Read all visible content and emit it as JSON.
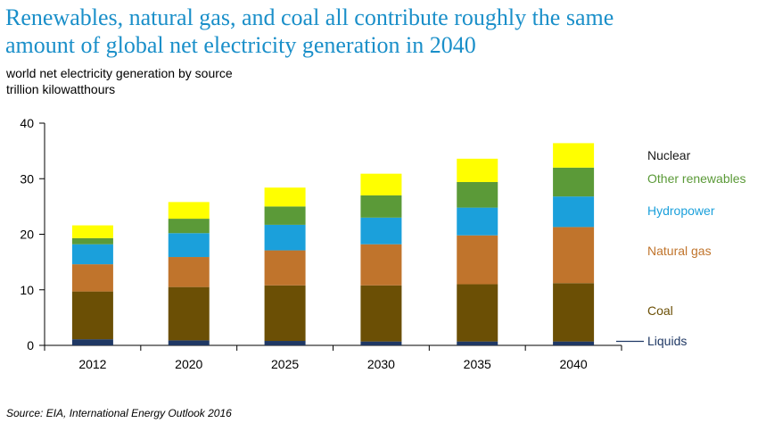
{
  "title_line1": "Renewables, natural gas, and coal all contribute roughly the same",
  "title_line2": "amount of global net electricity generation in 2040",
  "subtitle_line1": "world net electricity generation by source",
  "subtitle_line2": "trillion kilowatthours",
  "source": "Source:  EIA, International Energy Outlook 2016",
  "chart_data": {
    "type": "bar",
    "stacked": true,
    "categories": [
      "2012",
      "2020",
      "2025",
      "2030",
      "2035",
      "2040"
    ],
    "ylim": [
      0,
      40
    ],
    "yticks": [
      0,
      10,
      20,
      30,
      40
    ],
    "grid": false,
    "legend_placement": "right",
    "series": [
      {
        "name": "Liquids",
        "color": "#1f3864",
        "values": [
          1.1,
          0.9,
          0.8,
          0.7,
          0.7,
          0.7
        ]
      },
      {
        "name": "Coal",
        "color": "#6b4f05",
        "values": [
          8.6,
          9.6,
          10.0,
          10.1,
          10.3,
          10.5
        ]
      },
      {
        "name": "Natural gas",
        "color": "#c0742c",
        "values": [
          4.9,
          5.4,
          6.3,
          7.4,
          8.8,
          10.1
        ]
      },
      {
        "name": "Hydropower",
        "color": "#1ba0db",
        "values": [
          3.6,
          4.3,
          4.6,
          4.8,
          5.0,
          5.5
        ]
      },
      {
        "name": "Other renewables",
        "color": "#5b9a38",
        "values": [
          1.1,
          2.6,
          3.3,
          4.0,
          4.6,
          5.2
        ]
      },
      {
        "name": "Nuclear",
        "color": "#ffff00",
        "values": [
          2.3,
          3.0,
          3.4,
          3.9,
          4.2,
          4.4
        ]
      }
    ]
  }
}
